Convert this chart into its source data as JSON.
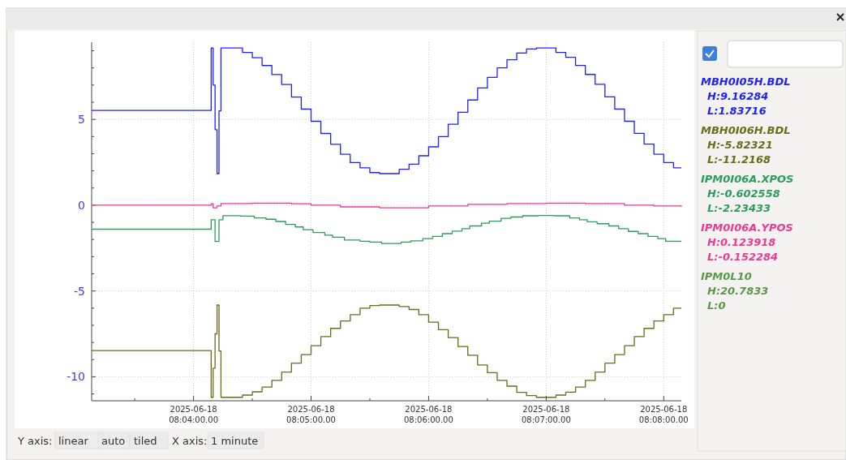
{
  "chart_data": {
    "type": "step",
    "xlim": [
      "2025-06-18T08:03:08",
      "2025-06-18T08:08:09"
    ],
    "xticks": [
      {
        "value": "2025-06-18T08:03:30",
        "label": null
      },
      {
        "value": "2025-06-18T08:04:00",
        "label": "2025-06-18\n08:04:00.00"
      },
      {
        "value": "2025-06-18T08:04:30",
        "label": null
      },
      {
        "value": "2025-06-18T08:05:00",
        "label": "2025-06-18\n08:05:00.00"
      },
      {
        "value": "2025-06-18T08:05:30",
        "label": null
      },
      {
        "value": "2025-06-18T08:06:00",
        "label": "2025-06-18\n08:06:00.00"
      },
      {
        "value": "2025-06-18T08:06:30",
        "label": null
      },
      {
        "value": "2025-06-18T08:07:00",
        "label": "2025-06-18\n08:07:00.00"
      },
      {
        "value": "2025-06-18T08:07:30",
        "label": null
      },
      {
        "value": "2025-06-18T08:08:00",
        "label": "2025-06-18\n08:08:00.00"
      }
    ],
    "ylim": [
      -11.4,
      9.5
    ],
    "yticks": [
      {
        "value": -11,
        "label": null
      },
      {
        "value": -10,
        "label": "-10"
      },
      {
        "value": -9,
        "label": null
      },
      {
        "value": -8,
        "label": null
      },
      {
        "value": -7,
        "label": null
      },
      {
        "value": -6,
        "label": null
      },
      {
        "value": -5,
        "label": "-5"
      },
      {
        "value": -4,
        "label": null
      },
      {
        "value": -3,
        "label": null
      },
      {
        "value": -2,
        "label": null
      },
      {
        "value": -1,
        "label": null
      },
      {
        "value": 0,
        "label": "0"
      },
      {
        "value": 1,
        "label": null
      },
      {
        "value": 2,
        "label": null
      },
      {
        "value": 3,
        "label": null
      },
      {
        "value": 4,
        "label": null
      },
      {
        "value": 5,
        "label": "5"
      },
      {
        "value": 6,
        "label": null
      },
      {
        "value": 7,
        "label": null
      },
      {
        "value": 8,
        "label": null
      },
      {
        "value": 9,
        "label": null
      }
    ],
    "grid": true,
    "legend": "right",
    "x": [
      "2025-06-18T08:03:08",
      "2025-06-18T08:04:08",
      "2025-06-18T08:04:09",
      "2025-06-18T08:04:10",
      "2025-06-18T08:04:11",
      "2025-06-18T08:04:12",
      "2025-06-18T08:04:13",
      "2025-06-18T08:04:14",
      "2025-06-18T08:04:25",
      "2025-06-18T08:04:30",
      "2025-06-18T08:04:35",
      "2025-06-18T08:04:40",
      "2025-06-18T08:04:45",
      "2025-06-18T08:04:50",
      "2025-06-18T08:04:55",
      "2025-06-18T08:05:00",
      "2025-06-18T08:05:05",
      "2025-06-18T08:05:10",
      "2025-06-18T08:05:15",
      "2025-06-18T08:05:20",
      "2025-06-18T08:05:25",
      "2025-06-18T08:05:30",
      "2025-06-18T08:05:35",
      "2025-06-18T08:05:40",
      "2025-06-18T08:05:45",
      "2025-06-18T08:05:50",
      "2025-06-18T08:05:55",
      "2025-06-18T08:06:00",
      "2025-06-18T08:06:05",
      "2025-06-18T08:06:10",
      "2025-06-18T08:06:15",
      "2025-06-18T08:06:20",
      "2025-06-18T08:06:25",
      "2025-06-18T08:06:30",
      "2025-06-18T08:06:35",
      "2025-06-18T08:06:40",
      "2025-06-18T08:06:45",
      "2025-06-18T08:06:50",
      "2025-06-18T08:06:55",
      "2025-06-18T08:07:00",
      "2025-06-18T08:07:05",
      "2025-06-18T08:07:10",
      "2025-06-18T08:07:15",
      "2025-06-18T08:07:20",
      "2025-06-18T08:07:25",
      "2025-06-18T08:07:30",
      "2025-06-18T08:07:35",
      "2025-06-18T08:07:40",
      "2025-06-18T08:07:45",
      "2025-06-18T08:07:50",
      "2025-06-18T08:07:55",
      "2025-06-18T08:08:00",
      "2025-06-18T08:08:05",
      "2025-06-18T08:08:09"
    ],
    "series": [
      {
        "name": "MBH0I05H.BDL",
        "color": "#2020ff",
        "values": [
          5.52,
          5.52,
          9.16,
          7.0,
          4.4,
          1.84,
          5.5,
          9.16,
          8.9,
          8.6,
          8.14,
          7.61,
          7.04,
          6.3,
          5.6,
          4.89,
          4.18,
          3.55,
          2.97,
          2.48,
          2.18,
          1.9,
          1.84,
          1.84,
          2.09,
          2.39,
          2.88,
          3.4,
          4.0,
          4.72,
          5.42,
          6.13,
          6.83,
          7.45,
          8.0,
          8.48,
          8.87,
          9.1,
          9.16,
          9.16,
          8.9,
          8.62,
          8.15,
          7.62,
          7.05,
          6.31,
          5.6,
          4.89,
          4.19,
          3.56,
          2.97,
          2.48,
          2.18,
          2.18
        ]
      },
      {
        "name": "MBH0I06H.BDL",
        "color": "#6b6b1a",
        "values": [
          -8.47,
          -8.47,
          -11.2,
          -9.5,
          -7.5,
          -5.82,
          -8.5,
          -11.2,
          -11.07,
          -10.88,
          -10.6,
          -10.21,
          -9.73,
          -9.21,
          -8.71,
          -8.19,
          -7.66,
          -7.18,
          -6.75,
          -6.38,
          -6.0,
          -5.85,
          -5.82,
          -5.82,
          -5.91,
          -6.08,
          -6.38,
          -6.82,
          -7.26,
          -7.72,
          -8.24,
          -8.75,
          -9.31,
          -9.76,
          -10.21,
          -10.55,
          -10.91,
          -11.1,
          -11.2,
          -11.2,
          -11.07,
          -10.9,
          -10.6,
          -10.21,
          -9.73,
          -9.21,
          -8.71,
          -8.19,
          -7.66,
          -7.18,
          -6.75,
          -6.38,
          -6.0,
          -6.0
        ]
      },
      {
        "name": "IPM0I06A.XPOS",
        "color": "#2a9d5c",
        "x": [
          "2025-06-18T08:03:08",
          "2025-06-18T08:04:09",
          "2025-06-18T08:04:11",
          "2025-06-18T08:04:13",
          "2025-06-18T08:04:15",
          "2025-06-18T08:04:24",
          "2025-06-18T08:04:31",
          "2025-06-18T08:04:37",
          "2025-06-18T08:04:42",
          "2025-06-18T08:04:47",
          "2025-06-18T08:04:52",
          "2025-06-18T08:04:56",
          "2025-06-18T08:05:01",
          "2025-06-18T08:05:07",
          "2025-06-18T08:05:11",
          "2025-06-18T08:05:17",
          "2025-06-18T08:05:25",
          "2025-06-18T08:05:30",
          "2025-06-18T08:05:36",
          "2025-06-18T08:05:46",
          "2025-06-18T08:05:51",
          "2025-06-18T08:05:57",
          "2025-06-18T08:06:02",
          "2025-06-18T08:06:07",
          "2025-06-18T08:06:12",
          "2025-06-18T08:06:17",
          "2025-06-18T08:06:21",
          "2025-06-18T08:06:27",
          "2025-06-18T08:06:31",
          "2025-06-18T08:06:37",
          "2025-06-18T08:06:42",
          "2025-06-18T08:06:48",
          "2025-06-18T08:06:56",
          "2025-06-18T08:07:04",
          "2025-06-18T08:07:12",
          "2025-06-18T08:07:17",
          "2025-06-18T08:07:21",
          "2025-06-18T08:07:26",
          "2025-06-18T08:07:32",
          "2025-06-18T08:07:37",
          "2025-06-18T08:07:42",
          "2025-06-18T08:07:47",
          "2025-06-18T08:07:52",
          "2025-06-18T08:07:57",
          "2025-06-18T08:08:01",
          "2025-06-18T08:08:09"
        ],
        "values": [
          -1.4,
          -0.85,
          -2.11,
          -0.85,
          -0.61,
          -0.64,
          -0.74,
          -0.82,
          -0.95,
          -1.12,
          -1.27,
          -1.43,
          -1.59,
          -1.75,
          -1.87,
          -2.03,
          -2.1,
          -2.15,
          -2.23,
          -2.15,
          -2.08,
          -1.95,
          -1.82,
          -1.66,
          -1.51,
          -1.37,
          -1.21,
          -1.05,
          -0.93,
          -0.77,
          -0.69,
          -0.62,
          -0.6,
          -0.62,
          -0.74,
          -0.85,
          -0.97,
          -1.08,
          -1.21,
          -1.37,
          -1.53,
          -1.66,
          -1.82,
          -1.95,
          -2.1,
          -2.1
        ]
      },
      {
        "name": "IPM0I06A.YPOS",
        "color": "#f03890",
        "x": [
          "2025-06-18T08:03:08",
          "2025-06-18T08:04:08",
          "2025-06-18T08:04:09",
          "2025-06-18T08:04:10",
          "2025-06-18T08:04:12",
          "2025-06-18T08:04:14",
          "2025-06-18T08:04:30",
          "2025-06-18T08:04:50",
          "2025-06-18T08:05:00",
          "2025-06-18T08:05:15",
          "2025-06-18T08:05:35",
          "2025-06-18T08:06:00",
          "2025-06-18T08:06:20",
          "2025-06-18T08:06:40",
          "2025-06-18T08:07:00",
          "2025-06-18T08:07:20",
          "2025-06-18T08:07:40",
          "2025-06-18T08:07:55",
          "2025-06-18T08:08:09"
        ],
        "values": [
          0.0,
          0.0,
          0.08,
          -0.15,
          -0.05,
          0.1,
          0.12,
          0.08,
          0.0,
          -0.1,
          -0.15,
          -0.05,
          0.05,
          0.1,
          0.12,
          0.1,
          0.0,
          -0.05,
          -0.1
        ]
      },
      {
        "name": "IPM0L10",
        "color": "#3c8a2c",
        "values": [
          null,
          null,
          null,
          null,
          null,
          null,
          null,
          null,
          null,
          null,
          null,
          null,
          null,
          null,
          null,
          null,
          null,
          null,
          null,
          null,
          null,
          null,
          null,
          null,
          null,
          null,
          null,
          null,
          null,
          null,
          null,
          null,
          null,
          null,
          null,
          null,
          null,
          null,
          null,
          null,
          null,
          null,
          null,
          null,
          null,
          null,
          null,
          null,
          null,
          null,
          null,
          null,
          null,
          null
        ]
      }
    ],
    "annotations": [
      "H:9.16284",
      "L:1.83716",
      "H:-5.82321",
      "L:-11.2168",
      "H:-0.602558",
      "L:-2.23433",
      "H:0.123918",
      "L:-0.152284",
      "H:20.7833",
      "L:0",
      "Y axis:",
      "linear",
      "auto",
      "tiled",
      "X axis:",
      "1 minute"
    ]
  }
}
